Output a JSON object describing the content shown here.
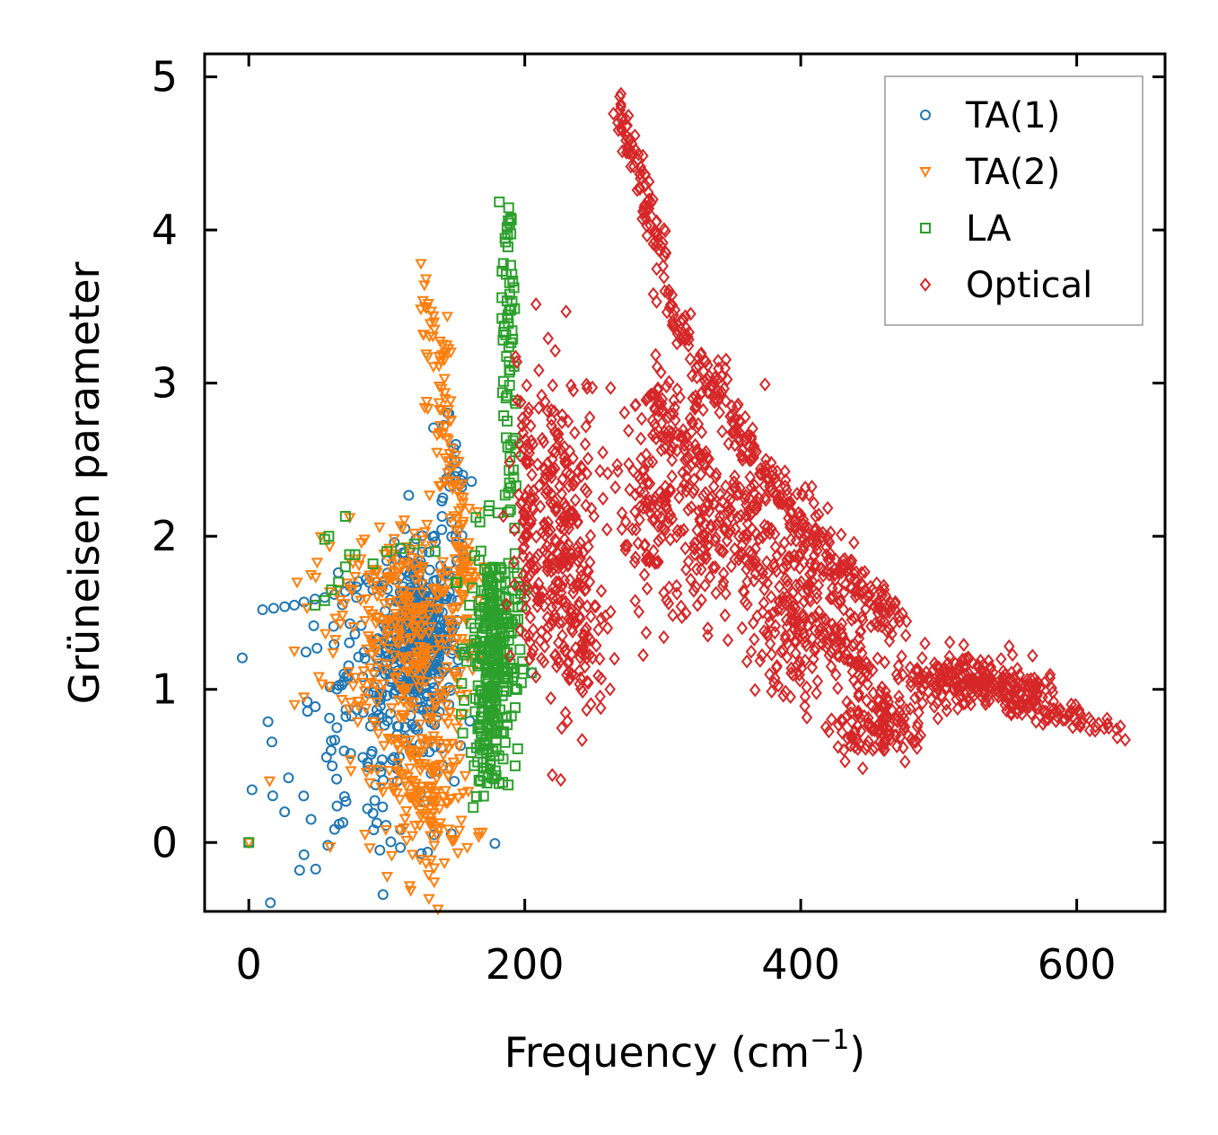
{
  "chart_data": {
    "type": "scatter",
    "title": "",
    "xlabel": "Frequency (cm",
    "xlabel_sup": "−1",
    "xlabel_end": ")",
    "ylabel": "Grüneisen parameter",
    "xlim": [
      -32,
      664
    ],
    "ylim": [
      -0.45,
      5.15
    ],
    "xticks": [
      0,
      200,
      400,
      600
    ],
    "yticks": [
      0,
      1,
      2,
      3,
      4,
      5
    ],
    "xtick_labels": [
      "0",
      "200",
      "400",
      "600"
    ],
    "ytick_labels": [
      "0",
      "1",
      "2",
      "3",
      "4",
      "5"
    ],
    "legend_position": "top-right",
    "series": [
      {
        "name": "TA(1)",
        "marker": "circle",
        "color": "#1f77b4",
        "clusters": [
          {
            "cx": 122,
            "cy": 1.35,
            "sx": 14,
            "sy": 0.28,
            "n": 380
          },
          {
            "cx": 95,
            "cy": 0.75,
            "sx": 35,
            "sy": 0.45,
            "n": 160
          },
          {
            "cx": 145,
            "cy": 2.2,
            "sx": 7,
            "sy": 0.35,
            "n": 30
          }
        ],
        "points": [
          [
            10,
            1.52
          ],
          [
            18,
            1.53
          ],
          [
            26,
            1.54
          ],
          [
            33,
            1.55
          ],
          [
            40,
            1.57
          ],
          [
            48,
            1.59
          ],
          [
            55,
            1.6
          ],
          [
            62,
            1.62
          ],
          [
            70,
            1.64
          ],
          [
            78,
            1.67
          ],
          [
            85,
            1.72
          ],
          [
            92,
            1.78
          ],
          [
            100,
            1.84
          ],
          [
            0,
            0.0
          ],
          [
            26,
            0.2
          ],
          [
            40,
            -0.08
          ],
          [
            95,
            -0.05
          ],
          [
            145,
            2.8
          ],
          [
            150,
            2.6
          ],
          [
            155,
            2.4
          ],
          [
            150,
            2.0
          ],
          [
            155,
            1.9
          ]
        ]
      },
      {
        "name": "TA(2)",
        "marker": "triangle-down",
        "color": "#ff7f0e",
        "clusters": [
          {
            "cx": 115,
            "cy": 1.45,
            "sx": 25,
            "sy": 0.35,
            "n": 260
          },
          {
            "cx": 128,
            "cy": 0.35,
            "sx": 18,
            "sy": 0.3,
            "n": 180
          },
          {
            "cx": 100,
            "cy": 1.1,
            "sx": 30,
            "sy": 0.4,
            "n": 60
          }
        ],
        "lines": [
          {
            "x0": 130,
            "y0": 3.65,
            "x1": 158,
            "y1": 1.6,
            "jx": 5,
            "jy": 0.08,
            "n": 120
          }
        ],
        "points": [
          [
            0,
            0.0
          ],
          [
            35,
            1.7
          ],
          [
            33,
            1.25
          ],
          [
            45,
            1.75
          ],
          [
            40,
            0.95
          ]
        ]
      },
      {
        "name": "LA",
        "marker": "square",
        "color": "#2ca02c",
        "clusters": [
          {
            "cx": 178,
            "cy": 1.25,
            "sx": 9,
            "sy": 0.35,
            "n": 280
          },
          {
            "cx": 170,
            "cy": 0.6,
            "sx": 5,
            "sy": 0.2,
            "n": 40
          }
        ],
        "lines": [
          {
            "x0": 188,
            "y0": 4.1,
            "x1": 190,
            "y1": 2.3,
            "jx": 2.5,
            "jy": 0.06,
            "n": 70
          }
        ],
        "points": [
          [
            0,
            0.0
          ],
          [
            55,
            1.98
          ],
          [
            58,
            2.0
          ],
          [
            70,
            2.13
          ],
          [
            73,
            1.88
          ],
          [
            77,
            1.88
          ],
          [
            48,
            1.55
          ],
          [
            55,
            1.58
          ],
          [
            60,
            1.65
          ],
          [
            65,
            1.7
          ],
          [
            70,
            1.8
          ],
          [
            90,
            1.82
          ],
          [
            100,
            1.9
          ],
          [
            110,
            1.92
          ],
          [
            120,
            1.95
          ],
          [
            135,
            1.9
          ],
          [
            150,
            1.7
          ],
          [
            160,
            1.55
          ],
          [
            165,
            0.3
          ],
          [
            168,
            0.4
          ],
          [
            200,
            1.65
          ]
        ]
      },
      {
        "name": "Optical",
        "marker": "diamond",
        "color": "#d62728",
        "clusters": [
          {
            "cx": 225,
            "cy": 2.1,
            "sx": 15,
            "sy": 0.5,
            "n": 260
          },
          {
            "cx": 240,
            "cy": 1.3,
            "sx": 10,
            "sy": 0.3,
            "n": 80
          },
          {
            "cx": 300,
            "cy": 2.2,
            "sx": 18,
            "sy": 0.35,
            "n": 180
          },
          {
            "cx": 350,
            "cy": 2.0,
            "sx": 20,
            "sy": 0.3,
            "n": 150
          },
          {
            "cx": 400,
            "cy": 1.55,
            "sx": 20,
            "sy": 0.3,
            "n": 220
          },
          {
            "cx": 450,
            "cy": 0.72,
            "sx": 15,
            "sy": 0.08,
            "n": 80
          },
          {
            "cx": 520,
            "cy": 1.05,
            "sx": 25,
            "sy": 0.1,
            "n": 120
          }
        ],
        "lines": [
          {
            "x0": 267,
            "y0": 4.88,
            "x1": 300,
            "y1": 3.8,
            "jx": 3,
            "jy": 0.05,
            "n": 90
          },
          {
            "x0": 300,
            "y0": 3.6,
            "x1": 380,
            "y1": 2.3,
            "jx": 5,
            "jy": 0.07,
            "n": 120
          },
          {
            "x0": 290,
            "y0": 2.9,
            "x1": 330,
            "y1": 2.6,
            "jx": 4,
            "jy": 0.1,
            "n": 60
          },
          {
            "x0": 380,
            "y0": 2.3,
            "x1": 470,
            "y1": 1.4,
            "jx": 6,
            "jy": 0.07,
            "n": 150
          },
          {
            "x0": 420,
            "y0": 1.4,
            "x1": 480,
            "y1": 0.65,
            "jx": 6,
            "jy": 0.06,
            "n": 90
          },
          {
            "x0": 470,
            "y0": 1.1,
            "x1": 580,
            "y1": 0.98,
            "jx": 6,
            "jy": 0.05,
            "n": 120
          },
          {
            "x0": 540,
            "y0": 0.95,
            "x1": 632,
            "y1": 0.72,
            "jx": 4,
            "jy": 0.04,
            "n": 80
          },
          {
            "x0": 198,
            "y0": 3.1,
            "x1": 208,
            "y1": 1.2,
            "jx": 3,
            "jy": 0.1,
            "n": 60
          }
        ],
        "points": [
          [
            288,
            1.37
          ],
          [
            340,
            2.95
          ],
          [
            350,
            2.85
          ],
          [
            265,
            1.2
          ],
          [
            260,
            1.4
          ],
          [
            490,
            1.3
          ],
          [
            590,
            0.8
          ],
          [
            600,
            0.78
          ]
        ]
      }
    ]
  }
}
